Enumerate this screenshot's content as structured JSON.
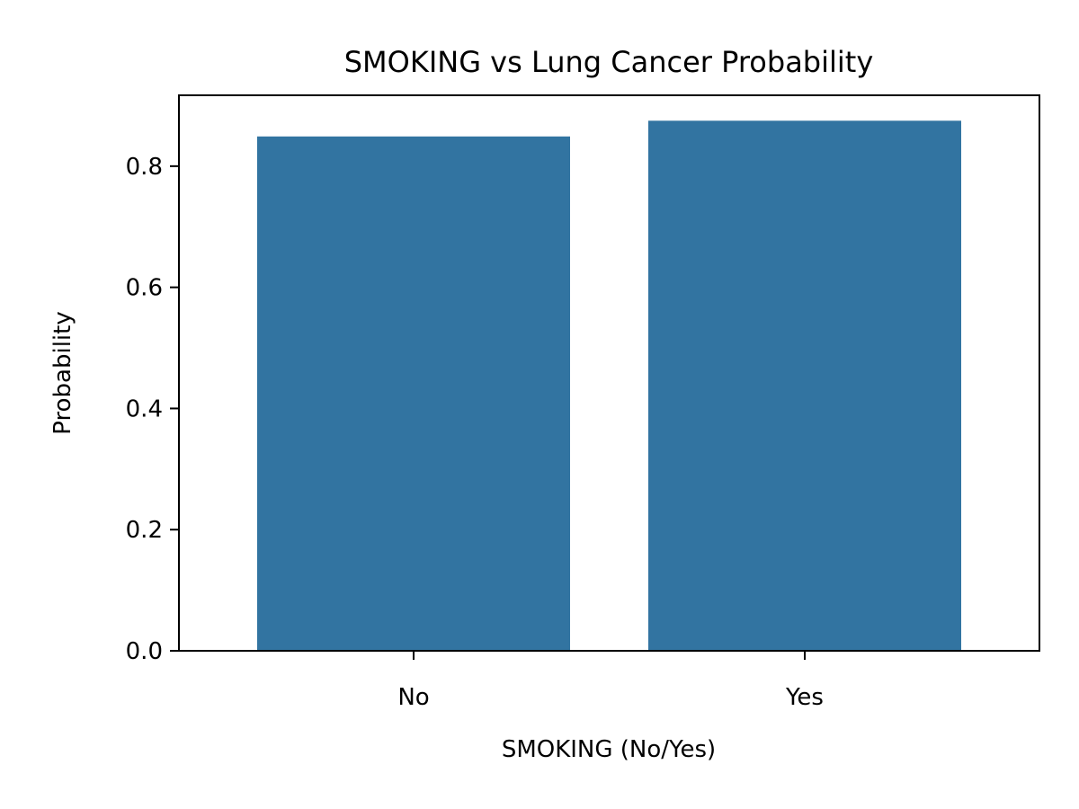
{
  "chart_data": {
    "type": "bar",
    "title": "SMOKING vs Lung Cancer Probability",
    "xlabel": "SMOKING (No/Yes)",
    "ylabel": "Probability",
    "categories": [
      "No",
      "Yes"
    ],
    "values": [
      0.849,
      0.875
    ],
    "ylim": [
      0,
      0.917
    ],
    "yticks": [
      0.0,
      0.2,
      0.4,
      0.6,
      0.8
    ],
    "ytick_labels": [
      "0.0",
      "0.2",
      "0.4",
      "0.6",
      "0.8"
    ],
    "grid": false,
    "legend": "none",
    "colors": {
      "bar": "#3274a1",
      "axes": "#000000",
      "background": "#ffffff"
    }
  }
}
